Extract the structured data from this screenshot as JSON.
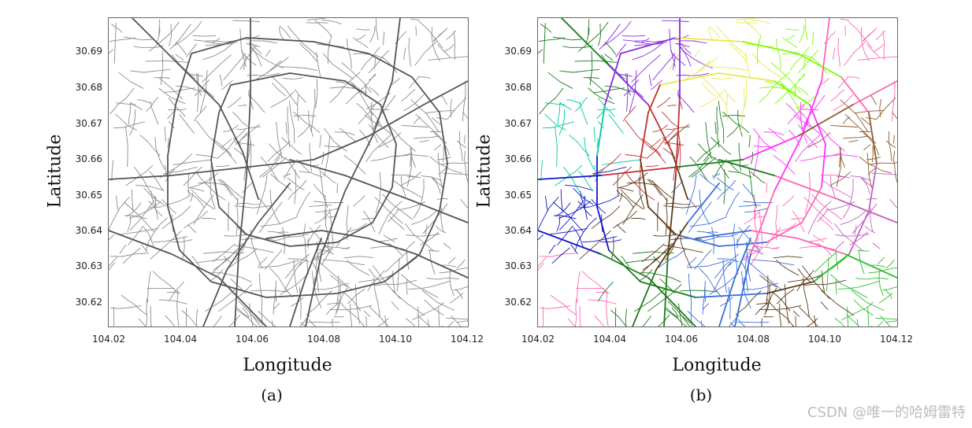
{
  "panels": [
    {
      "id": "a",
      "caption": "(a)",
      "xlabel": "Longitude",
      "ylabel": "Latitude",
      "xticks": [
        "104.02",
        "104.04",
        "104.06",
        "104.08",
        "104.10",
        "104.12"
      ],
      "yticks": [
        "30.69",
        "30.68",
        "30.67",
        "30.66",
        "30.65",
        "30.64",
        "30.63",
        "30.62"
      ],
      "style": "gray"
    },
    {
      "id": "b",
      "caption": "(b)",
      "xlabel": "Longitude",
      "ylabel": "Latitude",
      "xticks": [
        "104.02",
        "104.04",
        "104.06",
        "104.08",
        "104.10",
        "104.12"
      ],
      "yticks": [
        "30.69",
        "30.68",
        "30.67",
        "30.66",
        "30.65",
        "30.64",
        "30.63",
        "30.62"
      ],
      "style": "clustered"
    }
  ],
  "watermark": "CSDN @唯一的哈姆雷特",
  "colors": {
    "road_gray": "#7a7a7a",
    "cluster_palette": [
      "#1a7a1a",
      "#2fbf2f",
      "#7cfc00",
      "#00c8a0",
      "#40e0d0",
      "#3a6fd8",
      "#1515c8",
      "#8a2be2",
      "#ff33ff",
      "#ff66b3",
      "#e07a7a",
      "#c03030",
      "#f0d060",
      "#f5c48a",
      "#e8e84a",
      "#5b3a1a",
      "#8b5a2b",
      "#a0a0ff",
      "#c060c0"
    ]
  }
}
